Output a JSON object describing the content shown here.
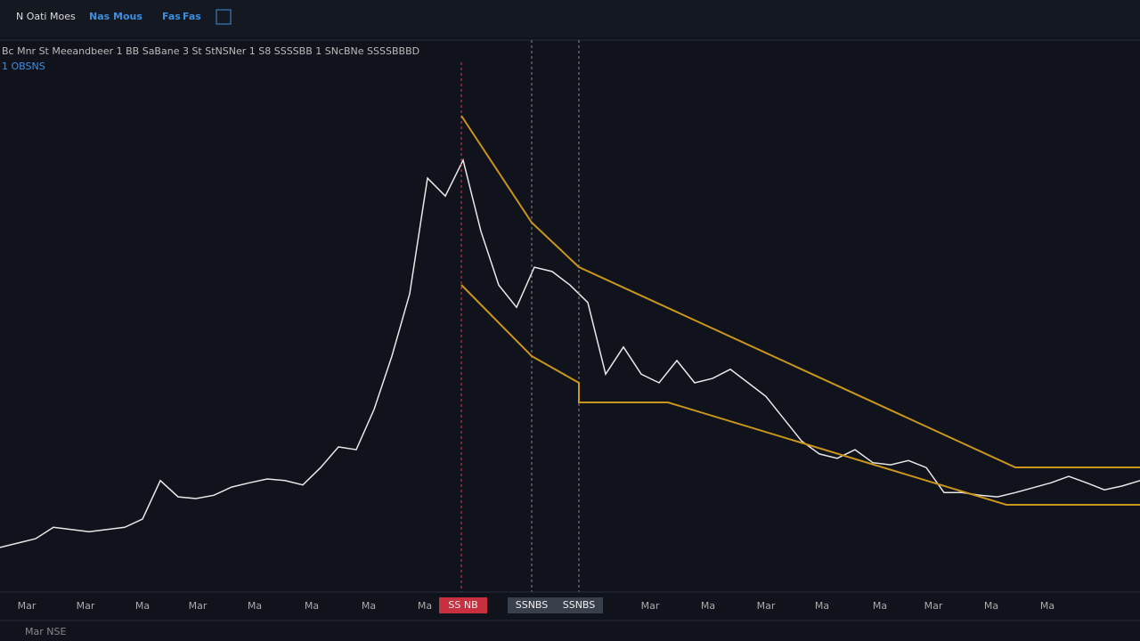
{
  "toolbar": {
    "items": [
      "N Oati Moes",
      "Nas Mous",
      "Fas",
      "Fas"
    ]
  },
  "legend": {
    "line1": "Bc Mnr St Meeandbeer 1 BB SaBane 3 St StNSNer 1 S8 SSSSBB 1 SNcBNe SSSSBBBD",
    "line2": "1 OBSNS"
  },
  "time_axis": {
    "labels": [
      "Mar",
      "Mar",
      "Ma",
      "Mar",
      "Ma",
      "Ma",
      "Ma",
      "Ma",
      "Mar",
      "Ma",
      "Mar",
      "Ma",
      "Ma",
      "Mar",
      "Ma",
      "Ma"
    ],
    "markers": [
      "SS NB",
      "SSNBS",
      "SSNBS"
    ]
  },
  "status": {
    "text": "Mar NSE"
  },
  "chart_data": {
    "type": "line",
    "ylim": [
      0,
      100
    ],
    "color": "#e8e8e8",
    "values": [
      7.4,
      8.2,
      9.0,
      11.1,
      10.7,
      10.3,
      10.7,
      11.1,
      12.6,
      19.7,
      16.7,
      16.4,
      17.0,
      18.5,
      19.3,
      20.0,
      19.7,
      18.9,
      22.1,
      25.9,
      25.4,
      32.8,
      42.6,
      54.1,
      75.4,
      72.1,
      78.7,
      65.6,
      55.7,
      51.6,
      59.0,
      58.2,
      55.7,
      52.5,
      39.3,
      44.3,
      39.3,
      37.7,
      41.8,
      37.7,
      38.5,
      40.2,
      37.7,
      35.2,
      31.1,
      27.0,
      24.6,
      23.8,
      25.4,
      23.0,
      22.6,
      23.4,
      22.1,
      17.5,
      17.5,
      17.0,
      16.7,
      17.5,
      18.4,
      19.3,
      20.5,
      19.3,
      18.0,
      18.7,
      19.7
    ]
  }
}
